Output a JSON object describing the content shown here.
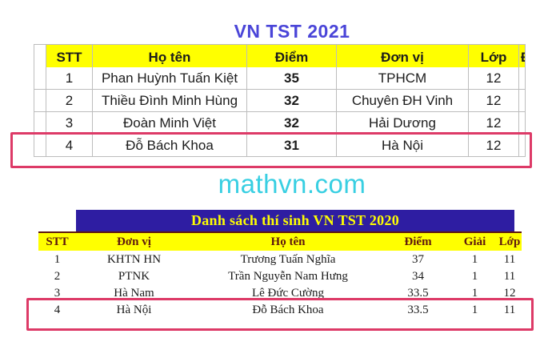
{
  "colors": {
    "title_blue": "#4a45d8",
    "header_yellow": "#ffff00",
    "banner_indigo": "#2e1da2",
    "banner_header_text_maroon": "#5e180e",
    "highlight_pink": "#dd3a67",
    "watermark_cyan": "#38cfe2",
    "gridline_grey": "#bdbdbd"
  },
  "watermark": {
    "text": "mathvn.com"
  },
  "table2021": {
    "title": "VN TST 2021",
    "clipped_column_fragment": "Đ",
    "columns": {
      "stt": "STT",
      "name": "Họ tên",
      "score": "Điểm",
      "unit": "Đơn vị",
      "grade": "Lớp"
    },
    "rows": [
      {
        "stt": "1",
        "name": "Phan Huỳnh Tuấn Kiệt",
        "score": "35",
        "unit": "TPHCM",
        "grade": "12"
      },
      {
        "stt": "2",
        "name": "Thiều Đình Minh Hùng",
        "score": "32",
        "unit": "Chuyên ĐH Vinh",
        "grade": "12"
      },
      {
        "stt": "3",
        "name": "Đoàn Minh Việt",
        "score": "32",
        "unit": "Hải Dương",
        "grade": "12"
      },
      {
        "stt": "4",
        "name": "Đỗ Bách Khoa",
        "score": "31",
        "unit": "Hà Nội",
        "grade": "12"
      }
    ],
    "highlighted_row_stt": "4"
  },
  "table2020": {
    "banner": "Danh sách thí sinh VN TST 2020",
    "columns": {
      "stt": "STT",
      "unit": "Đơn vị",
      "name": "Họ tên",
      "score": "Điểm",
      "prize": "Giải",
      "grade": "Lớp"
    },
    "rows": [
      {
        "stt": "1",
        "unit": "KHTN HN",
        "name": "Trương Tuấn Nghĩa",
        "score": "37",
        "prize": "1",
        "grade": "11"
      },
      {
        "stt": "2",
        "unit": "PTNK",
        "name": "Trần Nguyễn Nam Hưng",
        "score": "34",
        "prize": "1",
        "grade": "11"
      },
      {
        "stt": "3",
        "unit": "Hà Nam",
        "name": "Lê Đức Cường",
        "score": "33.5",
        "prize": "1",
        "grade": "12"
      },
      {
        "stt": "4",
        "unit": "Hà Nội",
        "name": "Đỗ Bách Khoa",
        "score": "33.5",
        "prize": "1",
        "grade": "11"
      }
    ],
    "highlighted_row_stt": "4"
  }
}
